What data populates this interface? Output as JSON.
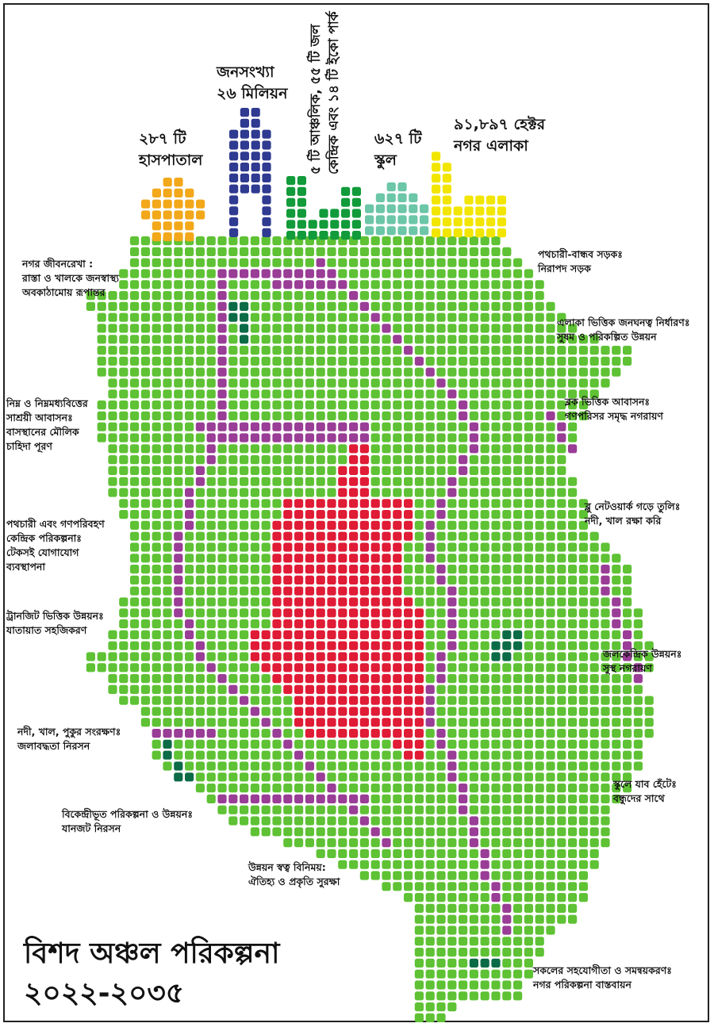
{
  "title": {
    "line1": "বিশদ অঞ্চল পরিকল্পনা",
    "line2": "২০২২-২০৩৫"
  },
  "stats": {
    "hospital": {
      "line1": "২৮৭ টি",
      "line2": "হাসপাতাল"
    },
    "population": {
      "line1": "জনসংখ্যা",
      "line2": "২৬ মিলিয়ন"
    },
    "parks": {
      "line1": "৫ টি আঞ্চলিক, ৫৫ টি জল",
      "line2": "কেন্দ্রিক এবং ১৪ টি ইকো পার্ক"
    },
    "school": {
      "line1": "৬২৭ টি",
      "line2": "স্কুল"
    },
    "area": {
      "line1": "৯১,৮৯৭ হেক্টর",
      "line2": "নগর এলাকা"
    }
  },
  "labels": {
    "left": [
      {
        "line1": "নগর জীবনরেখা :",
        "line2": "রাস্তা ও খালকে জনস্বাস্থ্য",
        "line3": "অবকাঠামোয় রূপান্তর"
      },
      {
        "line1": "নিম্ন ও নিম্নমধ্যবিত্তের",
        "line2": "সাশ্রয়ী আবাসনঃ",
        "line3": "বাসস্থানের মৌলিক",
        "line4": "চাহিদা পূরণ"
      },
      {
        "line1": "পথচারী এবং গণপরিবহণ",
        "line2": "কেন্দ্রিক পরিকল্পনাঃ",
        "line3": "টেকসই যোগাযোগ",
        "line4": "ব্যবস্থাপনা"
      },
      {
        "line1": "ট্রানজিট ভিত্তিক উন্নয়নঃ",
        "line2": "যাতায়াত সহজিকরণ"
      },
      {
        "line1": "নদী, খাল, পুকুর সংরক্ষণঃ",
        "line2": "জলাবদ্ধতা নিরসন"
      },
      {
        "line1": "বিকেন্দ্রীভূত পরিকল্পনা ও উন্নয়নঃ",
        "line2": "যানজট নিরসন"
      }
    ],
    "right": [
      {
        "line1": "পথচারী-বান্ধব সড়কঃ",
        "line2": "নিরাপদ সড়ক"
      },
      {
        "line1": "এলাকা ভিত্তিক জনঘনত্ব নির্ধারণঃ",
        "line2": "সুষম ও পরিকল্পিত উন্নয়ন"
      },
      {
        "line1": "ব্লক ভিত্তিক আবাসনঃ",
        "line2": "গণপরিসর সমৃদ্ধ নগরায়ণ"
      },
      {
        "line1": "ব্লু নেটওয়ার্ক গড়ে তুলিঃ",
        "line2": "নদী, খাল রক্ষা করি"
      },
      {
        "line1": "জলকেন্দ্রিক উন্নয়নঃ",
        "line2": "সুস্থ নগরায়ণ"
      },
      {
        "line1": "স্কুলে যাব হেঁটেঃ",
        "line2": "বন্ধুদের সাথে"
      },
      {
        "line1": "সকলের সহযোগীতা ও সমন্বয়করণঃ",
        "line2": "নগর পরিকল্পনা বাস্তবায়ন"
      }
    ],
    "bottom": {
      "line1": "উন্নয়ন স্বত্ব বিনিময়:",
      "line2": "ঐতিহ্য ও প্রকৃতি সুরক্ষা"
    }
  },
  "colors": {
    "land": "#5ec234",
    "road": "#993d96",
    "core": "#e01b35",
    "water": "#0b6b47",
    "hospital": "#f2a819",
    "population": "#2f3a91",
    "parks": "#129b3a",
    "school": "#6cc6a8",
    "area": "#f2e500"
  }
}
